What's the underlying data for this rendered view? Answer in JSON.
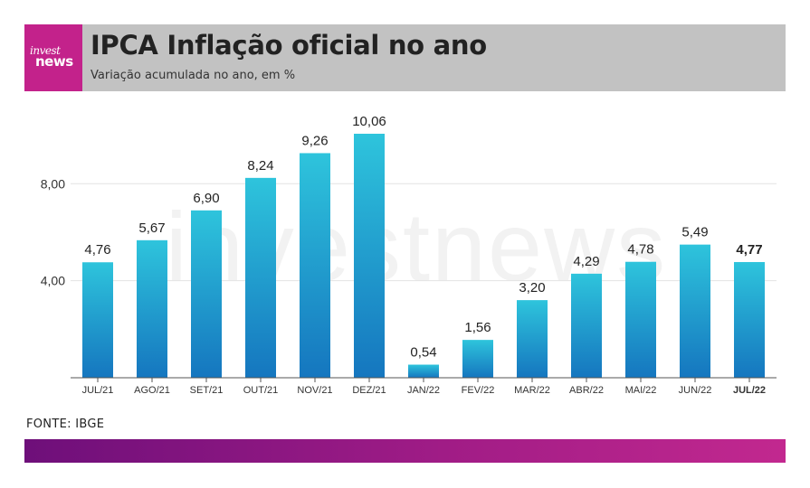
{
  "header": {
    "logo_line1": "invest",
    "logo_line2": "news",
    "title": "IPCA Inflação oficial no ano",
    "subtitle": "Variação acumulada no ano, em %"
  },
  "source": "FONTE: IBGE",
  "watermark": "investnews",
  "colors": {
    "brand": "#c3228b",
    "bar_top": "#2ec4dc",
    "bar_bottom": "#1576bf",
    "header_bg": "#c2c2c2"
  },
  "chart_data": {
    "type": "bar",
    "categories": [
      "JUL/21",
      "AGO/21",
      "SET/21",
      "OUT/21",
      "NOV/21",
      "DEZ/21",
      "JAN/22",
      "FEV/22",
      "MAR/22",
      "ABR/22",
      "MAI/22",
      "JUN/22",
      "JUL/22"
    ],
    "values": [
      4.76,
      5.67,
      6.9,
      8.24,
      9.26,
      10.06,
      0.54,
      1.56,
      3.2,
      4.29,
      4.78,
      5.49,
      4.77
    ],
    "value_labels": [
      "4,76",
      "5,67",
      "6,90",
      "8,24",
      "9,26",
      "10,06",
      "0,54",
      "1,56",
      "3,20",
      "4,29",
      "4,78",
      "5,49",
      "4,77"
    ],
    "highlight_category": "JUL/22",
    "yticks": [
      4,
      8
    ],
    "ytick_labels": [
      "4,00",
      "8,00"
    ],
    "ylim": [
      0,
      10.06
    ],
    "grid": true,
    "title": "IPCA Inflação oficial no ano",
    "subtitle": "Variação acumulada no ano, em %",
    "xlabel": "",
    "ylabel": ""
  }
}
